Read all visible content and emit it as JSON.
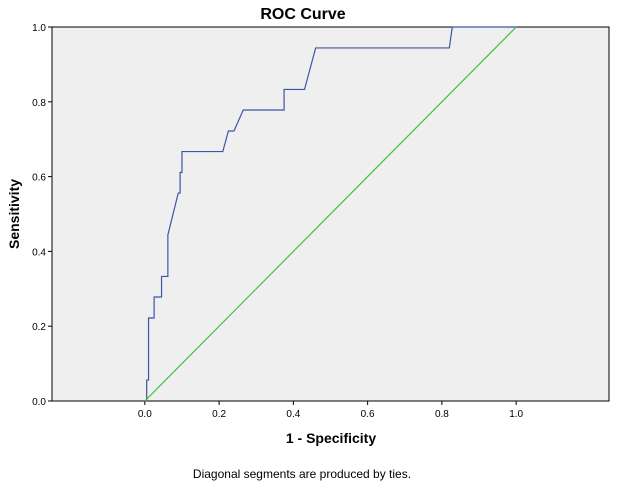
{
  "chart_data": {
    "type": "line",
    "title": "ROC Curve",
    "xlabel": "1 - Specificity",
    "ylabel": "Sensitivity",
    "footnote": "Diagonal segments are produced by ties.",
    "xlim": [
      -0.25,
      1.25
    ],
    "ylim": [
      0.0,
      1.0
    ],
    "xticks": [
      {
        "value": 0.0,
        "label": "0.0"
      },
      {
        "value": 0.2,
        "label": "0.2"
      },
      {
        "value": 0.4,
        "label": "0.4"
      },
      {
        "value": 0.6,
        "label": "0.6"
      },
      {
        "value": 0.8,
        "label": "0.8"
      },
      {
        "value": 1.0,
        "label": "1.0"
      }
    ],
    "yticks": [
      {
        "value": 0.0,
        "label": "0.0"
      },
      {
        "value": 0.2,
        "label": "0.2"
      },
      {
        "value": 0.4,
        "label": "0.4"
      },
      {
        "value": 0.6,
        "label": "0.6"
      },
      {
        "value": 0.8,
        "label": "0.8"
      },
      {
        "value": 1.0,
        "label": "1.0"
      }
    ],
    "grid": false,
    "plot_background": "#efefef",
    "series": [
      {
        "color": "#3b56a6",
        "x": [
          0.0,
          0.005,
          0.005,
          0.01,
          0.01,
          0.02,
          0.025,
          0.025,
          0.04,
          0.045,
          0.045,
          0.06,
          0.062,
          0.062,
          0.09,
          0.095,
          0.095,
          0.1,
          0.1,
          0.135,
          0.21,
          0.225,
          0.24,
          0.265,
          0.375,
          0.375,
          0.43,
          0.46,
          0.82,
          0.828,
          1.0
        ],
        "y": [
          0.0,
          0.0,
          0.056,
          0.056,
          0.222,
          0.222,
          0.222,
          0.278,
          0.278,
          0.278,
          0.333,
          0.333,
          0.333,
          0.444,
          0.556,
          0.556,
          0.611,
          0.611,
          0.667,
          0.667,
          0.667,
          0.722,
          0.722,
          0.778,
          0.778,
          0.833,
          0.833,
          0.944,
          0.944,
          1.0,
          1.0
        ]
      },
      {
        "color": "#3ec23e",
        "x": [
          0.0,
          1.0
        ],
        "y": [
          0.0,
          1.0
        ]
      }
    ]
  }
}
